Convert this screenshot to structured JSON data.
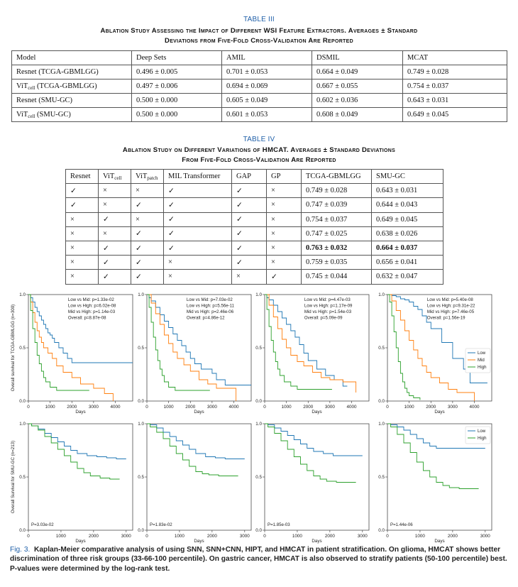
{
  "table3": {
    "label": "TABLE III",
    "title1": "Ablation Study Assessing the Impact of Different WSI Feature Extractors. Averages ± Standard",
    "title2": "Deviations from Five-Fold Cross-Validation Are Reported",
    "headers": [
      "Model",
      "Deep Sets",
      "AMIL",
      "DSMIL",
      "MCAT"
    ],
    "rows": [
      {
        "model": "Resnet (TCGA-GBMLGG)",
        "cells": [
          "0.496 ± 0.005",
          "0.701 ± 0.053",
          "0.664 ± 0.049",
          "0.749 ± 0.028"
        ]
      },
      {
        "model_a": "ViT",
        "model_sub": "cell",
        "model_b": " (TCGA-GBMLGG)",
        "cells": [
          "0.497 ± 0.006",
          "0.694 ± 0.069",
          "0.667 ± 0.055",
          "0.754 ± 0.037"
        ]
      },
      {
        "model": "Resnet (SMU-GC)",
        "cells": [
          "0.500 ± 0.000",
          "0.605 ± 0.049",
          "0.602 ± 0.036",
          "0.643 ± 0.031"
        ]
      },
      {
        "model_a": "ViT",
        "model_sub": "cell",
        "model_b": " (SMU-GC)",
        "cells": [
          "0.500 ± 0.000",
          "0.601 ± 0.053",
          "0.608 ± 0.049",
          "0.649 ± 0.045"
        ]
      }
    ]
  },
  "table4": {
    "label": "TABLE IV",
    "title1": "Ablation Study on Different Variations of HMCAT. Averages ± Standard Deviations",
    "title2": "From Five-Fold Cross-Validation Are Reported",
    "headers": {
      "resnet": "Resnet",
      "vit": "ViT",
      "cell": "cell",
      "patch": "patch",
      "mil": "MIL Transformer",
      "gap": "GAP",
      "gp": "GP",
      "tcga": "TCGA-GBMLGG",
      "smu": "SMU-GC"
    },
    "rows": [
      [
        "✓",
        "×",
        "×",
        "✓",
        "✓",
        "×",
        "0.749 ± 0.028",
        "0.643 ± 0.031"
      ],
      [
        "✓",
        "×",
        "✓",
        "✓",
        "✓",
        "×",
        "0.747 ± 0.039",
        "0.644 ± 0.043"
      ],
      [
        "×",
        "✓",
        "×",
        "✓",
        "✓",
        "×",
        "0.754 ± 0.037",
        "0.649 ± 0.045"
      ],
      [
        "×",
        "×",
        "✓",
        "✓",
        "✓",
        "×",
        "0.747 ± 0.025",
        "0.638 ± 0.026"
      ],
      [
        "×",
        "✓",
        "✓",
        "✓",
        "✓",
        "×",
        "0.763 ± 0.032",
        "0.664 ± 0.037"
      ],
      [
        "×",
        "✓",
        "✓",
        "×",
        "✓",
        "×",
        "0.759 ± 0.035",
        "0.656 ± 0.041"
      ],
      [
        "×",
        "✓",
        "✓",
        "×",
        "×",
        "✓",
        "0.745 ± 0.044",
        "0.632 ± 0.047"
      ]
    ],
    "bold_row": 4
  },
  "figure": {
    "caption_label": "Fig. 3.",
    "caption_text": "Kaplan-Meier comparative analysis of using SNN, SNN+CNN, HIPT, and HMCAT in patient stratification. On glioma, HMCAT shows better discrimination of three risk groups (33-66-100 percentile). On gastric cancer, HMCAT is also observed to stratify patients (50-100 percentile) best. P-values were determined by the log-rank test.",
    "colors": {
      "low": "#1f77b4",
      "mid": "#ff7f0e",
      "high": "#2ca02c"
    }
  },
  "chart_data": [
    {
      "type": "line",
      "panel": "glioma-1",
      "ylabel": "Overall survival for TCGA-GBMLGG (n=300)",
      "xlabel": "Days",
      "xlim": [
        0,
        4800
      ],
      "ylim": [
        0,
        1
      ],
      "xticks": [
        0,
        1000,
        2000,
        3000,
        4000
      ],
      "yticks": [
        0.0,
        0.5,
        1.0
      ],
      "annotations": [
        "Low vs Mid: p=1.33e-02",
        "Low vs High: p=6.02e-08",
        "Mid vs High: p=1.14e-03",
        "Overall: p=8.87e-08"
      ],
      "series": [
        {
          "name": "Low",
          "x": [
            0,
            100,
            200,
            300,
            400,
            500,
            600,
            700,
            800,
            900,
            1000,
            1100,
            1200,
            1400,
            1600,
            1800,
            2000,
            4800
          ],
          "y": [
            1.0,
            0.97,
            0.93,
            0.88,
            0.84,
            0.8,
            0.76,
            0.72,
            0.68,
            0.64,
            0.62,
            0.59,
            0.55,
            0.5,
            0.45,
            0.4,
            0.36,
            0.36
          ]
        },
        {
          "name": "Mid",
          "x": [
            0,
            100,
            200,
            300,
            400,
            500,
            600,
            700,
            900,
            1100,
            1300,
            1600,
            2000,
            2400,
            3000,
            3500,
            3900
          ],
          "y": [
            1.0,
            0.93,
            0.83,
            0.74,
            0.66,
            0.6,
            0.55,
            0.5,
            0.45,
            0.4,
            0.33,
            0.27,
            0.22,
            0.16,
            0.12,
            0.07,
            0.0
          ]
        },
        {
          "name": "High",
          "x": [
            0,
            100,
            200,
            300,
            400,
            500,
            600,
            700,
            800,
            1000,
            1300,
            2800
          ],
          "y": [
            1.0,
            0.85,
            0.68,
            0.55,
            0.43,
            0.35,
            0.28,
            0.22,
            0.18,
            0.13,
            0.1,
            0.1
          ]
        }
      ]
    },
    {
      "type": "line",
      "panel": "glioma-2",
      "xlabel": "Days",
      "xlim": [
        0,
        4800
      ],
      "ylim": [
        0,
        1
      ],
      "xticks": [
        0,
        1000,
        2000,
        3000,
        4000
      ],
      "yticks": [
        0.0,
        0.5,
        1.0
      ],
      "annotations": [
        "Low vs Mid: p=7.03e-02",
        "Low vs High: p=5.56e-11",
        "Mid vs High: p=2.46e-06",
        "Overall: p=4.86e-12"
      ],
      "series": [
        {
          "name": "Low",
          "x": [
            0,
            100,
            200,
            400,
            600,
            800,
            1000,
            1200,
            1400,
            1600,
            1800,
            2000,
            2200,
            2500,
            3000,
            3200,
            3600,
            4800
          ],
          "y": [
            1.0,
            0.97,
            0.94,
            0.88,
            0.81,
            0.75,
            0.69,
            0.63,
            0.57,
            0.52,
            0.46,
            0.4,
            0.35,
            0.3,
            0.26,
            0.2,
            0.15,
            0.15
          ]
        },
        {
          "name": "Mid",
          "x": [
            0,
            200,
            400,
            600,
            800,
            1000,
            1200,
            1400,
            1700,
            2000,
            2400,
            2800,
            3200,
            4000,
            4100
          ],
          "y": [
            1.0,
            0.92,
            0.82,
            0.72,
            0.62,
            0.54,
            0.46,
            0.4,
            0.34,
            0.28,
            0.2,
            0.16,
            0.12,
            0.12,
            0.0
          ]
        },
        {
          "name": "High",
          "x": [
            0,
            100,
            200,
            300,
            400,
            500,
            600,
            700,
            800,
            1000,
            1300,
            2900
          ],
          "y": [
            1.0,
            0.88,
            0.74,
            0.6,
            0.48,
            0.38,
            0.3,
            0.24,
            0.18,
            0.13,
            0.1,
            0.1
          ]
        }
      ]
    },
    {
      "type": "line",
      "panel": "glioma-3",
      "xlabel": "Days",
      "xlim": [
        0,
        4800
      ],
      "ylim": [
        0,
        1
      ],
      "xticks": [
        0,
        1000,
        2000,
        3000,
        4000
      ],
      "yticks": [
        0.0,
        0.5,
        1.0
      ],
      "annotations": [
        "Low vs Mid: p=4.47e-03",
        "Low vs High: p=1.17e-09",
        "Mid vs High: p=1.54e-03",
        "Overall: p=5.09e-09"
      ],
      "series": [
        {
          "name": "Low",
          "x": [
            0,
            100,
            200,
            400,
            600,
            800,
            1000,
            1200,
            1400,
            1600,
            1800,
            2000,
            2400,
            2800,
            3200,
            3600,
            3800
          ],
          "y": [
            1.0,
            0.97,
            0.95,
            0.9,
            0.84,
            0.78,
            0.72,
            0.66,
            0.6,
            0.53,
            0.45,
            0.38,
            0.3,
            0.24,
            0.2,
            0.14,
            0.14
          ]
        },
        {
          "name": "Mid",
          "x": [
            0,
            200,
            400,
            600,
            800,
            1000,
            1200,
            1500,
            1800,
            2200,
            2600,
            3000,
            3600,
            4000,
            4200
          ],
          "y": [
            1.0,
            0.9,
            0.79,
            0.68,
            0.58,
            0.5,
            0.43,
            0.37,
            0.33,
            0.27,
            0.22,
            0.2,
            0.18,
            0.18,
            0.08
          ]
        },
        {
          "name": "High",
          "x": [
            0,
            100,
            200,
            300,
            400,
            500,
            600,
            700,
            900,
            1200,
            1500,
            3100
          ],
          "y": [
            1.0,
            0.86,
            0.7,
            0.57,
            0.46,
            0.37,
            0.3,
            0.24,
            0.18,
            0.14,
            0.11,
            0.11
          ]
        }
      ]
    },
    {
      "type": "line",
      "panel": "glioma-4",
      "xlabel": "Days",
      "xlim": [
        0,
        4800
      ],
      "ylim": [
        0,
        1
      ],
      "xticks": [
        0,
        1000,
        2000,
        3000,
        4000
      ],
      "yticks": [
        0.0,
        0.5,
        1.0
      ],
      "annotations": [
        "Low vs Mid: p=5.40e-08",
        "Low vs High: p=9.31e-22",
        "Mid vs High: p=7.46e-05",
        "Overall: p=1.56e-19"
      ],
      "legend": [
        "Low",
        "Mid",
        "High"
      ],
      "legend_position": "right",
      "series": [
        {
          "name": "Low",
          "x": [
            0,
            200,
            400,
            600,
            800,
            1000,
            1200,
            1400,
            1600,
            1800,
            2000,
            2500,
            3000,
            3500,
            3800,
            4600
          ],
          "y": [
            1.0,
            0.99,
            0.98,
            0.96,
            0.95,
            0.93,
            0.89,
            0.86,
            0.8,
            0.74,
            0.68,
            0.55,
            0.4,
            0.3,
            0.17,
            0.17
          ]
        },
        {
          "name": "Mid",
          "x": [
            0,
            200,
            400,
            600,
            800,
            1000,
            1200,
            1400,
            1600,
            1800,
            2000,
            2400,
            2800,
            3200,
            3700,
            4000
          ],
          "y": [
            1.0,
            0.94,
            0.85,
            0.76,
            0.66,
            0.57,
            0.48,
            0.4,
            0.33,
            0.27,
            0.22,
            0.17,
            0.11,
            0.08,
            0.08,
            0.0
          ]
        },
        {
          "name": "High",
          "x": [
            0,
            100,
            200,
            300,
            400,
            500,
            600,
            700,
            800,
            900,
            1000,
            1200,
            1500
          ],
          "y": [
            1.0,
            0.93,
            0.8,
            0.65,
            0.5,
            0.37,
            0.26,
            0.18,
            0.12,
            0.08,
            0.05,
            0.03,
            0.01
          ]
        }
      ]
    },
    {
      "type": "line",
      "panel": "gastric-1",
      "ylabel": "Overall Survival for SMU-GC (n=213)",
      "xlabel": "Days",
      "xlim": [
        0,
        3200
      ],
      "ylim": [
        0,
        1
      ],
      "xticks": [
        0,
        1000,
        2000,
        3000
      ],
      "yticks": [
        0.0,
        0.5,
        1.0
      ],
      "annotations": [
        "P=3.03e-02"
      ],
      "series": [
        {
          "name": "Low",
          "x": [
            0,
            100,
            300,
            500,
            700,
            900,
            1100,
            1300,
            1500,
            1800,
            2100,
            2400,
            2700,
            3000
          ],
          "y": [
            1.0,
            0.98,
            0.95,
            0.91,
            0.87,
            0.83,
            0.79,
            0.75,
            0.72,
            0.7,
            0.69,
            0.68,
            0.67,
            0.67
          ]
        },
        {
          "name": "High",
          "x": [
            0,
            100,
            300,
            500,
            700,
            900,
            1100,
            1300,
            1500,
            1700,
            1900,
            2200,
            2500,
            2800
          ],
          "y": [
            1.0,
            0.98,
            0.94,
            0.88,
            0.82,
            0.76,
            0.7,
            0.64,
            0.58,
            0.54,
            0.51,
            0.49,
            0.48,
            0.48
          ]
        }
      ]
    },
    {
      "type": "line",
      "panel": "gastric-2",
      "xlabel": "Days",
      "xlim": [
        0,
        3200
      ],
      "ylim": [
        0,
        1
      ],
      "xticks": [
        0,
        1000,
        2000,
        3000
      ],
      "yticks": [
        0.0,
        0.5,
        1.0
      ],
      "annotations": [
        "P=1.83e-02"
      ],
      "series": [
        {
          "name": "Low",
          "x": [
            0,
            100,
            300,
            500,
            700,
            900,
            1100,
            1300,
            1500,
            1800,
            2100,
            2400,
            2700,
            3000
          ],
          "y": [
            1.0,
            0.99,
            0.96,
            0.92,
            0.88,
            0.84,
            0.8,
            0.76,
            0.72,
            0.69,
            0.68,
            0.67,
            0.67,
            0.67
          ]
        },
        {
          "name": "High",
          "x": [
            0,
            100,
            300,
            500,
            700,
            900,
            1100,
            1300,
            1500,
            1700,
            1900,
            2200,
            2500,
            2800
          ],
          "y": [
            1.0,
            0.97,
            0.92,
            0.86,
            0.79,
            0.72,
            0.66,
            0.6,
            0.55,
            0.53,
            0.52,
            0.51,
            0.51,
            0.51
          ]
        }
      ]
    },
    {
      "type": "line",
      "panel": "gastric-3",
      "xlabel": "Days",
      "xlim": [
        0,
        3200
      ],
      "ylim": [
        0,
        1
      ],
      "xticks": [
        0,
        1000,
        2000,
        3000
      ],
      "yticks": [
        0.0,
        0.5,
        1.0
      ],
      "annotations": [
        "P=1.85e-03"
      ],
      "series": [
        {
          "name": "Low",
          "x": [
            0,
            100,
            300,
            500,
            700,
            900,
            1100,
            1300,
            1500,
            1800,
            2100,
            2400,
            2700,
            3000
          ],
          "y": [
            1.0,
            0.99,
            0.96,
            0.93,
            0.89,
            0.85,
            0.81,
            0.77,
            0.74,
            0.72,
            0.7,
            0.7,
            0.7,
            0.7
          ]
        },
        {
          "name": "High",
          "x": [
            0,
            100,
            300,
            500,
            700,
            900,
            1100,
            1300,
            1500,
            1700,
            1900,
            2200,
            2500,
            2800
          ],
          "y": [
            1.0,
            0.97,
            0.91,
            0.84,
            0.76,
            0.69,
            0.62,
            0.56,
            0.51,
            0.48,
            0.46,
            0.45,
            0.45,
            0.45
          ]
        }
      ]
    },
    {
      "type": "line",
      "panel": "gastric-4",
      "xlabel": "Days",
      "xlim": [
        0,
        3200
      ],
      "ylim": [
        0,
        1
      ],
      "xticks": [
        0,
        1000,
        2000,
        3000
      ],
      "yticks": [
        0.0,
        0.5,
        1.0
      ],
      "annotations": [
        "P=1.44e-06"
      ],
      "legend": [
        "Low",
        "High"
      ],
      "legend_position": "upper right",
      "series": [
        {
          "name": "Low",
          "x": [
            0,
            100,
            300,
            500,
            700,
            900,
            1100,
            1300,
            1500,
            1800,
            2100,
            2400,
            2700,
            3000
          ],
          "y": [
            1.0,
            0.99,
            0.97,
            0.94,
            0.9,
            0.86,
            0.82,
            0.79,
            0.77,
            0.77,
            0.77,
            0.77,
            0.77,
            0.77
          ]
        },
        {
          "name": "High",
          "x": [
            0,
            100,
            300,
            500,
            700,
            900,
            1100,
            1300,
            1500,
            1700,
            1900,
            2200,
            2500,
            2800
          ],
          "y": [
            1.0,
            0.97,
            0.9,
            0.82,
            0.73,
            0.64,
            0.56,
            0.5,
            0.45,
            0.42,
            0.4,
            0.39,
            0.39,
            0.39
          ]
        }
      ]
    }
  ]
}
